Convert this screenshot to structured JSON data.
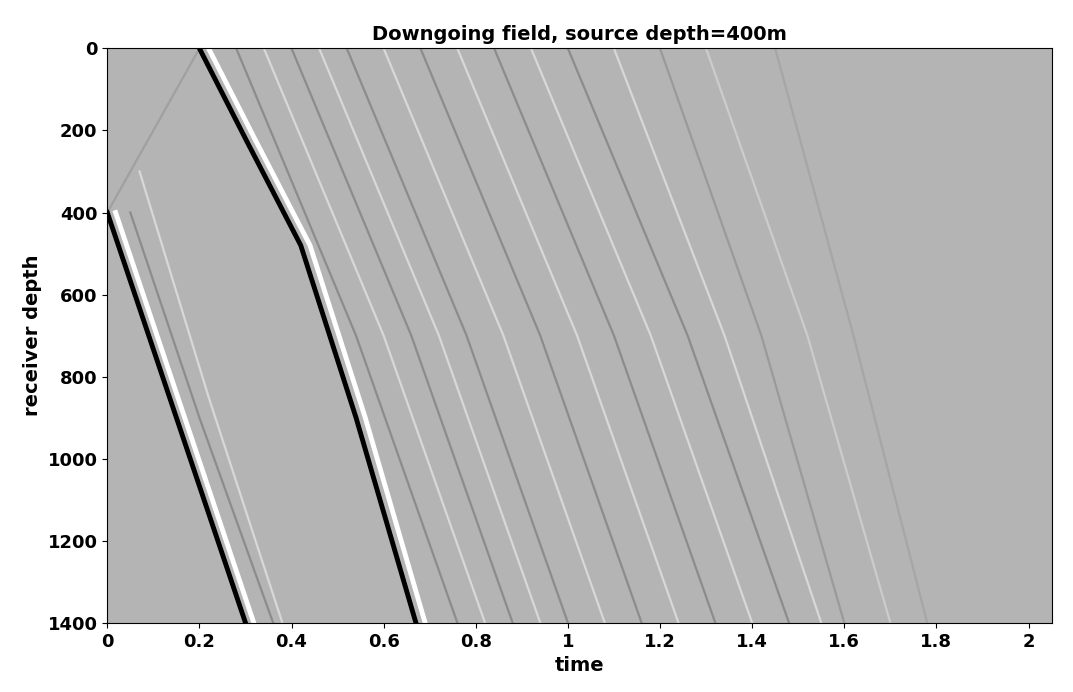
{
  "chart_data": {
    "type": "line",
    "title": "Downgoing field, source depth=400m",
    "x_label": "time",
    "y_label": "receiver depth",
    "xlim": [
      0,
      2.05
    ],
    "ylim": [
      1400,
      0
    ],
    "xticks": [
      0,
      0.2,
      0.4,
      0.6,
      0.8,
      1,
      1.2,
      1.4,
      1.6,
      1.8,
      2
    ],
    "yticks": [
      0,
      200,
      400,
      600,
      800,
      1000,
      1200,
      1400
    ],
    "series": [
      {
        "color": "#a0a0a0",
        "x": [
          0,
          0.1,
          0.2
        ],
        "y": [
          400,
          200,
          0
        ]
      },
      {
        "color": "#000000",
        "x": [
          0,
          0.15,
          0.3
        ],
        "y": [
          400,
          900,
          1400
        ]
      },
      {
        "color": "#ffffff",
        "x": [
          0.018,
          0.168,
          0.318
        ],
        "y": [
          400,
          900,
          1400
        ]
      },
      {
        "color": "#8c8c8c",
        "x": [
          0.05,
          0.2,
          0.36
        ],
        "y": [
          400,
          900,
          1400
        ]
      },
      {
        "color": "#d8d8d8",
        "x": [
          0.07,
          0.22,
          0.38
        ],
        "y": [
          300,
          850,
          1400
        ]
      },
      {
        "color": "#000000",
        "x": [
          0.2,
          0.3,
          0.42,
          0.54,
          0.67
        ],
        "y": [
          0,
          220,
          480,
          900,
          1400
        ]
      },
      {
        "color": "#ffffff",
        "x": [
          0.22,
          0.32,
          0.44,
          0.56,
          0.69
        ],
        "y": [
          0,
          220,
          480,
          900,
          1400
        ]
      },
      {
        "color": "#8c8c8c",
        "x": [
          0.28,
          0.54,
          0.76
        ],
        "y": [
          0,
          700,
          1400
        ]
      },
      {
        "color": "#d8d8d8",
        "x": [
          0.34,
          0.6,
          0.82
        ],
        "y": [
          0,
          700,
          1400
        ]
      },
      {
        "color": "#8c8c8c",
        "x": [
          0.4,
          0.66,
          0.88
        ],
        "y": [
          0,
          700,
          1400
        ]
      },
      {
        "color": "#d8d8d8",
        "x": [
          0.46,
          0.72,
          0.94
        ],
        "y": [
          0,
          700,
          1400
        ]
      },
      {
        "color": "#8c8c8c",
        "x": [
          0.52,
          0.78,
          1.0
        ],
        "y": [
          0,
          700,
          1400
        ]
      },
      {
        "color": "#d8d8d8",
        "x": [
          0.6,
          0.86,
          1.08
        ],
        "y": [
          0,
          700,
          1400
        ]
      },
      {
        "color": "#8c8c8c",
        "x": [
          0.68,
          0.94,
          1.16
        ],
        "y": [
          0,
          700,
          1400
        ]
      },
      {
        "color": "#d8d8d8",
        "x": [
          0.76,
          1.02,
          1.24
        ],
        "y": [
          0,
          700,
          1400
        ]
      },
      {
        "color": "#8c8c8c",
        "x": [
          0.84,
          1.1,
          1.32
        ],
        "y": [
          0,
          700,
          1400
        ]
      },
      {
        "color": "#d8d8d8",
        "x": [
          0.92,
          1.18,
          1.4
        ],
        "y": [
          0,
          700,
          1400
        ]
      },
      {
        "color": "#8c8c8c",
        "x": [
          1.0,
          1.26,
          1.48
        ],
        "y": [
          0,
          700,
          1400
        ]
      },
      {
        "color": "#d8d8d8",
        "x": [
          1.1,
          1.34,
          1.55
        ],
        "y": [
          0,
          700,
          1400
        ]
      },
      {
        "color": "#9a9a9a",
        "x": [
          1.2,
          1.42,
          1.6
        ],
        "y": [
          0,
          700,
          1400
        ]
      },
      {
        "color": "#cccccc",
        "x": [
          1.3,
          1.52,
          1.7
        ],
        "y": [
          0,
          700,
          1400
        ]
      },
      {
        "color": "#a6a6a6",
        "x": [
          1.45,
          1.62,
          1.78
        ],
        "y": [
          0,
          700,
          1400
        ]
      }
    ]
  }
}
